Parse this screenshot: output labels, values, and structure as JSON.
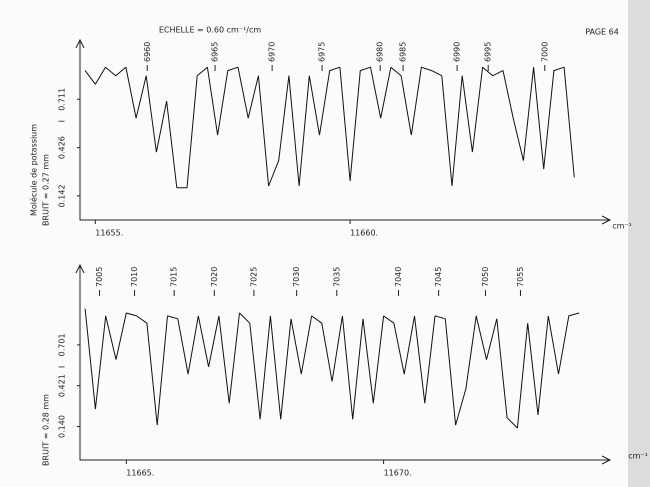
{
  "header": {
    "scale": "ECHELLE = 0.60 cm⁻¹/cm",
    "page": "PAGE 64"
  },
  "molecule": "Molécule de potassium",
  "chart_data": [
    {
      "type": "line",
      "ylabel": "I",
      "noise": "BRUIT = 0.27 mm",
      "xlabel": "cm⁻¹",
      "xlim": [
        11654.7,
        11665.1
      ],
      "ylim": [
        0,
        1.06
      ],
      "xticks": [
        {
          "value": 11655,
          "label": "11655."
        },
        {
          "value": 11660,
          "label": "11660."
        }
      ],
      "yticks": [
        0.142,
        0.426,
        0.711
      ],
      "numbered_lines": [
        {
          "number": 6960,
          "x": 11656.02
        },
        {
          "number": 6965,
          "x": 11657.35
        },
        {
          "number": 6970,
          "x": 11658.47
        },
        {
          "number": 6975,
          "x": 11659.45
        },
        {
          "number": 6980,
          "x": 11660.59
        },
        {
          "number": 6985,
          "x": 11661.04
        },
        {
          "number": 6990,
          "x": 11662.1
        },
        {
          "number": 6995,
          "x": 11662.71
        },
        {
          "number": 7000,
          "x": 11663.82
        }
      ],
      "x": [
        11654.8,
        11655.0,
        11655.2,
        11655.4,
        11655.6,
        11655.8,
        11656.0,
        11656.2,
        11656.4,
        11656.6,
        11656.8,
        11657.0,
        11657.2,
        11657.4,
        11657.6,
        11657.8,
        11658.0,
        11658.2,
        11658.4,
        11658.6,
        11658.8,
        11659.0,
        11659.2,
        11659.4,
        11659.6,
        11659.8,
        11660.0,
        11660.2,
        11660.4,
        11660.6,
        11660.8,
        11661.0,
        11661.2,
        11661.4,
        11661.6,
        11661.8,
        11662.0,
        11662.2,
        11662.4,
        11662.6,
        11662.8,
        11663.0,
        11663.2,
        11663.4,
        11663.6,
        11663.8,
        11664.0,
        11664.2,
        11664.4
      ],
      "values": [
        0.88,
        0.8,
        0.9,
        0.85,
        0.9,
        0.6,
        0.85,
        0.4,
        0.7,
        0.19,
        0.19,
        0.85,
        0.9,
        0.5,
        0.88,
        0.9,
        0.6,
        0.85,
        0.2,
        0.35,
        0.85,
        0.2,
        0.85,
        0.5,
        0.88,
        0.9,
        0.23,
        0.88,
        0.9,
        0.6,
        0.9,
        0.85,
        0.5,
        0.9,
        0.88,
        0.85,
        0.2,
        0.85,
        0.4,
        0.9,
        0.85,
        0.88,
        0.6,
        0.35,
        0.9,
        0.3,
        0.88,
        0.9,
        0.25
      ]
    },
    {
      "type": "line",
      "ylabel": "I",
      "noise": "BRUIT = 0.28 mm",
      "xlabel": "cm⁻¹",
      "xlim": [
        11664.1,
        11674.4
      ],
      "ylim": [
        -0.09,
        1.25
      ],
      "xticks": [
        {
          "value": 11665,
          "label": "11665."
        },
        {
          "value": 11670,
          "label": "11670."
        }
      ],
      "yticks": [
        {
          "value": 0.14,
          "label": "0.140"
        },
        0.421,
        0.701
      ],
      "numbered_lines": [
        {
          "number": 7005,
          "x": 11664.48
        },
        {
          "number": 7010,
          "x": 11665.16
        },
        {
          "number": 7015,
          "x": 11665.93
        },
        {
          "number": 7020,
          "x": 11666.71
        },
        {
          "number": 7025,
          "x": 11667.48
        },
        {
          "number": 7030,
          "x": 11668.31
        },
        {
          "number": 7035,
          "x": 11669.09
        },
        {
          "number": 7040,
          "x": 11670.29
        },
        {
          "number": 7045,
          "x": 11671.07
        },
        {
          "number": 7050,
          "x": 11671.98
        },
        {
          "number": 7055,
          "x": 11672.66
        }
      ],
      "x": [
        11664.2,
        11664.4,
        11664.6,
        11664.8,
        11665.0,
        11665.2,
        11665.4,
        11665.6,
        11665.8,
        11666.0,
        11666.2,
        11666.4,
        11666.6,
        11666.8,
        11667.0,
        11667.2,
        11667.4,
        11667.6,
        11667.8,
        11668.0,
        11668.2,
        11668.4,
        11668.6,
        11668.8,
        11669.0,
        11669.2,
        11669.4,
        11669.6,
        11669.8,
        11670.0,
        11670.2,
        11670.4,
        11670.6,
        11670.8,
        11671.0,
        11671.2,
        11671.4,
        11671.6,
        11671.8,
        11672.0,
        11672.2,
        11672.4,
        11672.6,
        11672.8,
        11673.0,
        11673.2,
        11673.4,
        11673.6,
        11673.8
      ],
      "values": [
        0.95,
        0.26,
        0.9,
        0.6,
        0.92,
        0.9,
        0.85,
        0.15,
        0.9,
        0.88,
        0.5,
        0.9,
        0.55,
        0.9,
        0.3,
        0.92,
        0.85,
        0.19,
        0.9,
        0.19,
        0.88,
        0.5,
        0.9,
        0.85,
        0.45,
        0.9,
        0.19,
        0.88,
        0.3,
        0.9,
        0.85,
        0.5,
        0.9,
        0.3,
        0.9,
        0.88,
        0.15,
        0.4,
        0.9,
        0.6,
        0.88,
        0.2,
        0.13,
        0.85,
        0.22,
        0.9,
        0.5,
        0.9,
        0.92
      ]
    }
  ]
}
